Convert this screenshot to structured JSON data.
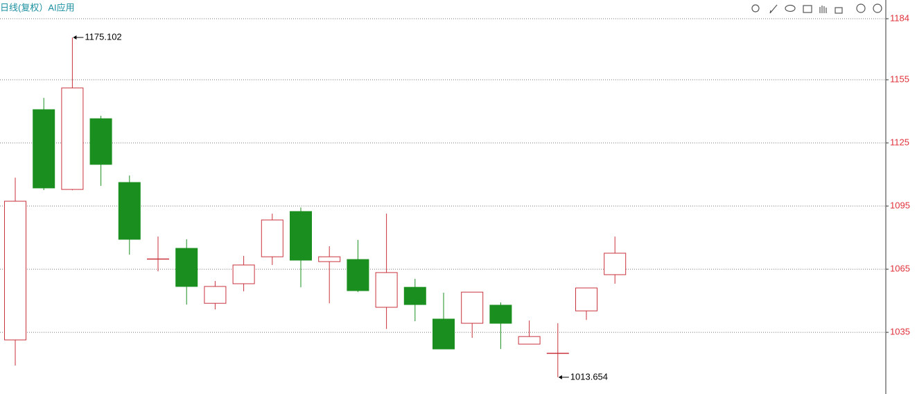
{
  "chart_data": {
    "type": "candlestick",
    "title": "日线(复权）AI应用",
    "categories": [
      null,
      null,
      null,
      null,
      null,
      null,
      null,
      null,
      null,
      null,
      null,
      null,
      null,
      null,
      null,
      null,
      null,
      null,
      null,
      null,
      null,
      null
    ],
    "open": [
      1031.4,
      1140.8,
      1102.9,
      1136.5,
      1106.2,
      1069.9,
      1074.9,
      1048.8,
      1058.1,
      1070.9,
      1092.4,
      1068.6,
      1069.6,
      1046.9,
      1056.4,
      1041.3,
      1039.3,
      1047.9,
      1029.4,
      1025.1,
      1045.2,
      1062.4
    ],
    "high": [
      1108.5,
      1146.4,
      1175.102,
      1137.9,
      1109.5,
      1080.5,
      1079.2,
      1059.4,
      1071.3,
      1091.4,
      1094.3,
      1075.9,
      1078.9,
      1091.4,
      1060.4,
      1053.8,
      1054.1,
      1049.2,
      1040.6,
      1039.3,
      1056.1,
      1080.5
    ],
    "low": [
      1019.2,
      1102.6,
      1102.5,
      1104.6,
      1071.9,
      1064.0,
      1048.2,
      1045.9,
      1054.5,
      1067.0,
      1056.4,
      1048.8,
      1054.1,
      1036.6,
      1040.3,
      1027.1,
      1032.4,
      1027.1,
      1029.4,
      1013.654,
      1040.9,
      1058.1
    ],
    "close": [
      1097.3,
      1103.6,
      1151.1,
      1114.8,
      1079.2,
      1069.9,
      1056.8,
      1056.8,
      1067.0,
      1088.4,
      1069.3,
      1070.9,
      1054.8,
      1063.4,
      1048.2,
      1027.1,
      1054.1,
      1039.3,
      1033.0,
      1025.1,
      1056.1,
      1072.6
    ],
    "up_color": "#c8323c",
    "down_color": "#1a8f1f",
    "ylim": [
      1005.7,
      1192.9
    ],
    "yticks": [
      1035,
      1065,
      1095,
      1125,
      1155,
      1184
    ],
    "grid": true
  }
}
